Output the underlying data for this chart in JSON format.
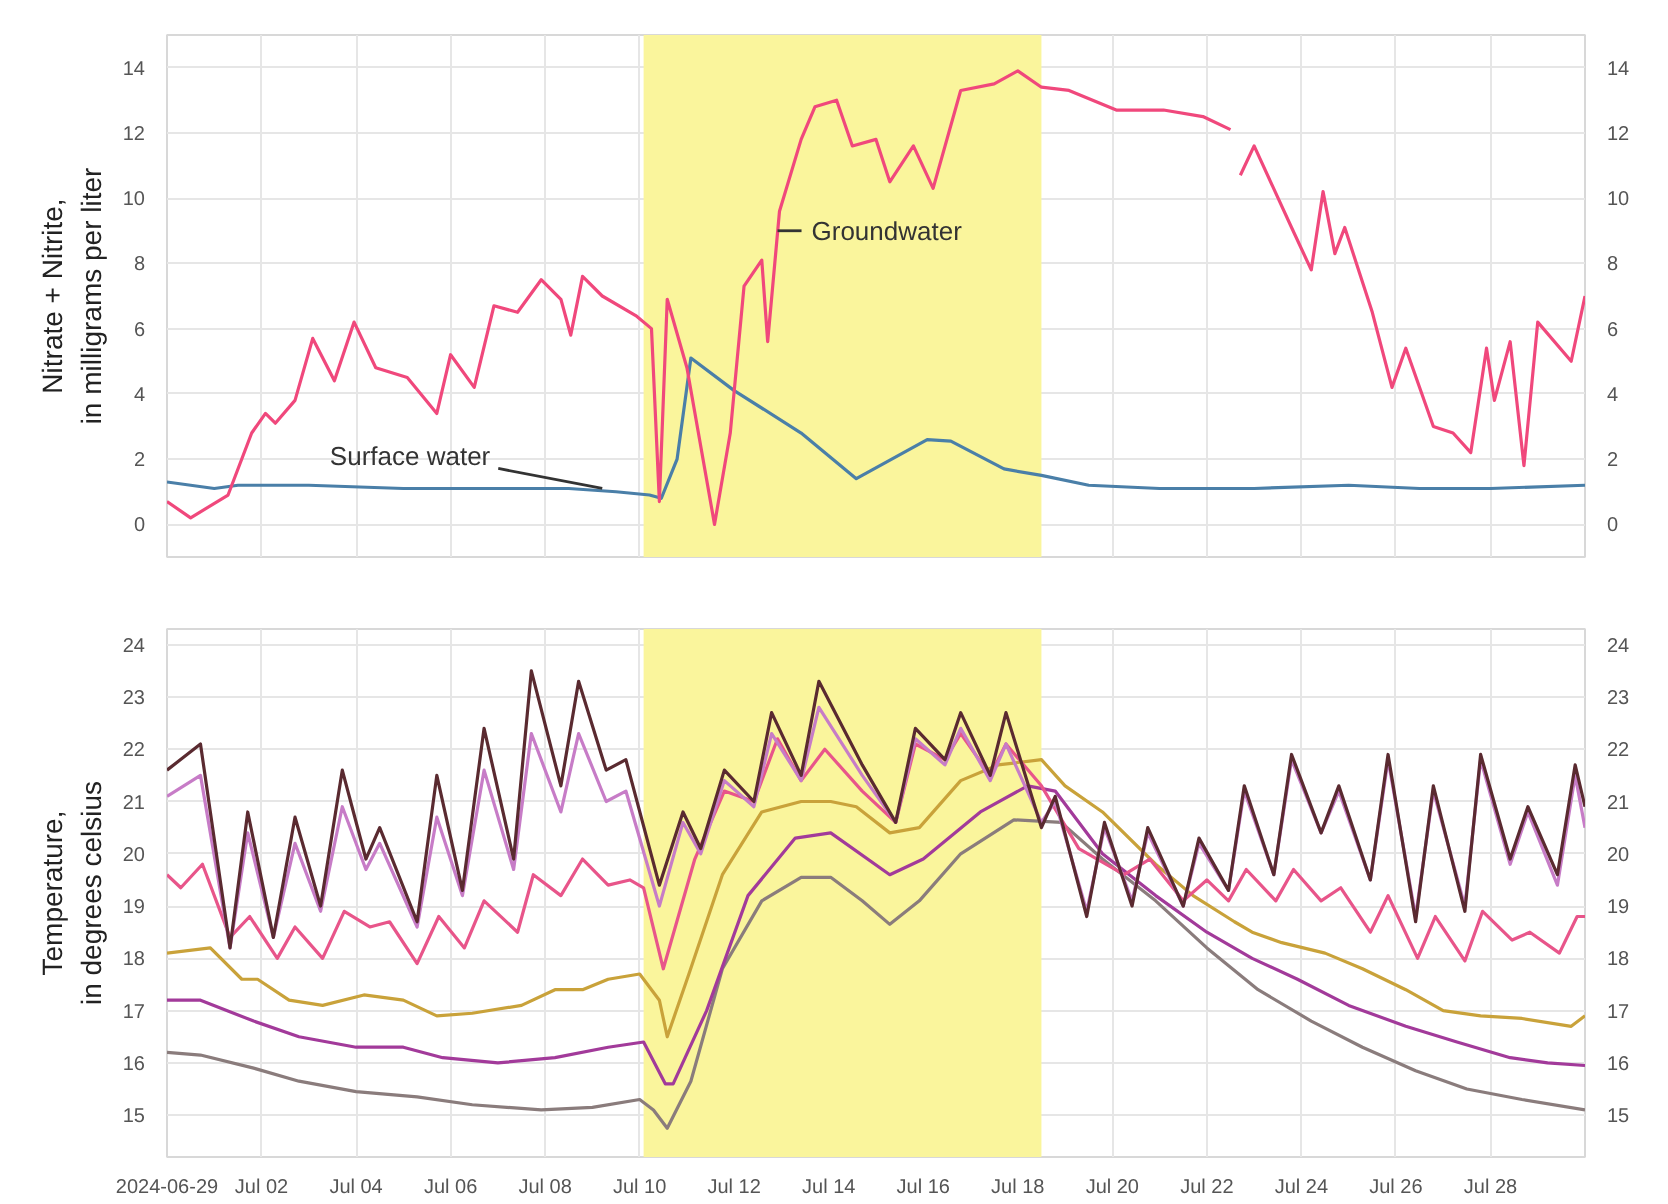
{
  "chart_data": [
    {
      "type": "line",
      "ylabel": "Nitrate + Nitrite,\nin milligrams per liter",
      "xlim": [
        "2024-06-30",
        "2024-07-30"
      ],
      "ylim": [
        -1,
        15
      ],
      "yticks": [
        0,
        2,
        4,
        6,
        8,
        10,
        12,
        14
      ],
      "y2lim": [
        -1,
        15
      ],
      "y2ticks": [
        0,
        2,
        4,
        6,
        8,
        10,
        12,
        14
      ],
      "xticks": [
        {
          "value": "2024-06-30",
          "label": null
        },
        {
          "value": "2024-07-02",
          "label": null
        },
        {
          "value": "2024-07-04",
          "label": null
        },
        {
          "value": "2024-07-06",
          "label": null
        },
        {
          "value": "2024-07-08",
          "label": null
        },
        {
          "value": "2024-07-10",
          "label": null
        },
        {
          "value": "2024-07-12",
          "label": null
        },
        {
          "value": "2024-07-14",
          "label": null
        },
        {
          "value": "2024-07-16",
          "label": null
        },
        {
          "value": "2024-07-18",
          "label": null
        },
        {
          "value": "2024-07-20",
          "label": null
        },
        {
          "value": "2024-07-22",
          "label": null
        },
        {
          "value": "2024-07-24",
          "label": null
        },
        {
          "value": "2024-07-26",
          "label": null
        },
        {
          "value": "2024-07-28",
          "label": null
        }
      ],
      "tick_labels": "y",
      "grid": true,
      "bands": [
        {
          "axis": "x",
          "from": "2024-07-10T02:00",
          "to": "2024-07-18T12:00",
          "color": "#faf59c"
        }
      ],
      "annotations": [
        {
          "text": "Surface water",
          "x": "2024-07-09T05:00",
          "y": 1.1
        },
        {
          "text": "Groundwater",
          "x": "2024-07-12T22:00",
          "y": 9.0
        }
      ],
      "series": [
        {
          "color": "#4a7fa8",
          "x": [
            "2024-06-30T00:00",
            "2024-07-01T00:00",
            "2024-07-01T12:00",
            "2024-07-03T00:00",
            "2024-07-05T00:00",
            "2024-07-07T00:00",
            "2024-07-08T12:00",
            "2024-07-09T12:00",
            "2024-07-10T05:00",
            "2024-07-10T11:00",
            "2024-07-10T19:00",
            "2024-07-11T02:00",
            "2024-07-12T00:00",
            "2024-07-13T10:00",
            "2024-07-14T14:00",
            "2024-07-16T02:00",
            "2024-07-16T14:00",
            "2024-07-17T17:00",
            "2024-07-18T12:00",
            "2024-07-19T12:00",
            "2024-07-21T00:00",
            "2024-07-23T00:00",
            "2024-07-25T00:00",
            "2024-07-26T12:00",
            "2024-07-28T00:00",
            "2024-07-30T00:00"
          ],
          "values": [
            1.3,
            1.1,
            1.2,
            1.2,
            1.1,
            1.1,
            1.1,
            1.0,
            0.9,
            0.8,
            2.0,
            5.1,
            4.1,
            2.8,
            1.4,
            2.6,
            2.55,
            1.7,
            1.5,
            1.2,
            1.1,
            1.1,
            1.2,
            1.1,
            1.1,
            1.2
          ]
        },
        {
          "color": "#f0487c",
          "x": [
            "2024-06-30T00:00",
            "2024-06-30T12:00",
            "2024-07-01T07:00",
            "2024-07-01T19:00",
            "2024-07-02T02:00",
            "2024-07-02T07:00",
            "2024-07-02T17:00",
            "2024-07-03T02:00",
            "2024-07-03T13:00",
            "2024-07-03T23:00",
            "2024-07-04T10:00",
            "2024-07-05T02:00",
            "2024-07-05T17:00",
            "2024-07-06T00:00",
            "2024-07-06T12:00",
            "2024-07-06T22:00",
            "2024-07-07T10:00",
            "2024-07-07T22:00",
            "2024-07-08T08:00",
            "2024-07-08T13:00",
            "2024-07-08T19:00",
            "2024-07-09T05:00",
            "2024-07-09T22:00",
            "2024-07-10T06:00",
            "2024-07-10T10:00",
            "2024-07-10T14:00",
            "2024-07-11T00:00",
            "2024-07-11T14:00",
            "2024-07-11T22:00",
            "2024-07-12T05:00",
            "2024-07-12T14:00",
            "2024-07-12T17:00",
            "2024-07-12T23:00",
            "2024-07-13T10:00",
            "2024-07-13T17:00",
            "2024-07-14T04:00",
            "2024-07-14T12:00",
            "2024-07-15T00:00",
            "2024-07-15T07:00",
            "2024-07-15T19:00",
            "2024-07-16T05:00",
            "2024-07-16T19:00",
            "2024-07-17T12:00",
            "2024-07-18T00:00",
            "2024-07-18T12:00",
            "2024-07-19T02:00",
            "2024-07-20T02:00",
            "2024-07-21T02:00",
            "2024-07-21T22:00",
            "2024-07-22T12:00",
            "2024-07-22T14:00",
            "2024-07-22T17:00",
            "2024-07-23T00:00",
            "2024-07-23T19:00",
            "2024-07-24T05:00",
            "2024-07-24T11:00",
            "2024-07-24T17:00",
            "2024-07-24T22:00",
            "2024-07-25T12:00",
            "2024-07-25T22:00",
            "2024-07-26T05:00",
            "2024-07-26T19:00",
            "2024-07-27T05:00",
            "2024-07-27T14:00",
            "2024-07-27T22:00",
            "2024-07-28T02:00",
            "2024-07-28T10:00",
            "2024-07-28T17:00",
            "2024-07-29T00:00",
            "2024-07-29T17:00",
            "2024-07-30T00:00"
          ],
          "values": [
            0.7,
            0.2,
            0.9,
            2.8,
            3.4,
            3.1,
            3.8,
            5.7,
            4.4,
            6.2,
            4.8,
            4.5,
            3.4,
            5.2,
            4.2,
            6.7,
            6.5,
            7.5,
            6.9,
            5.8,
            7.6,
            7.0,
            6.4,
            6.0,
            0.7,
            6.9,
            4.8,
            0.0,
            2.8,
            7.3,
            8.1,
            5.6,
            9.6,
            11.8,
            12.8,
            13.0,
            11.6,
            11.8,
            10.5,
            11.6,
            10.3,
            13.3,
            13.5,
            13.9,
            13.4,
            13.3,
            12.7,
            12.7,
            12.5,
            12.1,
            null,
            10.7,
            11.6,
            9.1,
            7.8,
            10.2,
            8.3,
            9.1,
            6.5,
            4.2,
            5.4,
            3.0,
            2.8,
            2.2,
            5.4,
            3.8,
            5.6,
            1.8,
            6.2,
            5.0,
            7.0
          ]
        }
      ]
    },
    {
      "type": "line",
      "ylabel": "Temperature,\nin degrees celsius",
      "xlim": [
        "2024-06-30",
        "2024-07-30"
      ],
      "ylim": [
        14.2,
        24.3
      ],
      "yticks": [
        15,
        16,
        17,
        18,
        19,
        20,
        21,
        22,
        23,
        24
      ],
      "y2lim": [
        14.2,
        24.3
      ],
      "y2ticks": [
        15,
        16,
        17,
        18,
        19,
        20,
        21,
        22,
        23,
        24
      ],
      "xticks": [
        {
          "value": "2024-06-30",
          "label": "2024-06-29"
        },
        {
          "value": "2024-07-02",
          "label": "Jul 02"
        },
        {
          "value": "2024-07-04",
          "label": "Jul 04"
        },
        {
          "value": "2024-07-06",
          "label": "Jul 06"
        },
        {
          "value": "2024-07-08",
          "label": "Jul 08"
        },
        {
          "value": "2024-07-10",
          "label": "Jul 10"
        },
        {
          "value": "2024-07-12",
          "label": "Jul 12"
        },
        {
          "value": "2024-07-14",
          "label": "Jul 14"
        },
        {
          "value": "2024-07-16",
          "label": "Jul 16"
        },
        {
          "value": "2024-07-18",
          "label": "Jul 18"
        },
        {
          "value": "2024-07-20",
          "label": "Jul 20"
        },
        {
          "value": "2024-07-22",
          "label": "Jul 22"
        },
        {
          "value": "2024-07-24",
          "label": "Jul 24"
        },
        {
          "value": "2024-07-26",
          "label": "Jul 26"
        },
        {
          "value": "2024-07-28",
          "label": "Jul 28"
        }
      ],
      "grid": true,
      "bands": [
        {
          "axis": "x",
          "from": "2024-07-10T02:00",
          "to": "2024-07-18T12:00",
          "color": "#faf59c"
        }
      ],
      "x": [
        "2024-06-30T00:00",
        "2024-06-30T17:00",
        "2024-07-01T08:00",
        "2024-07-01T17:00",
        "2024-07-02T06:00",
        "2024-07-02T17:00",
        "2024-07-03T06:00",
        "2024-07-03T17:00",
        "2024-07-04T05:00",
        "2024-07-04T12:00",
        "2024-07-05T07:00",
        "2024-07-05T17:00",
        "2024-07-06T06:00",
        "2024-07-06T17:00",
        "2024-07-07T08:00",
        "2024-07-07T17:00",
        "2024-07-08T08:00",
        "2024-07-08T17:00",
        "2024-07-09T07:00",
        "2024-07-09T17:00",
        "2024-07-10T10:00",
        "2024-07-10T22:00",
        "2024-07-11T07:00",
        "2024-07-11T19:00",
        "2024-07-12T10:00",
        "2024-07-12T19:00",
        "2024-07-13T10:00",
        "2024-07-13T19:00",
        "2024-07-14T17:00",
        "2024-07-15T10:00",
        "2024-07-15T20:00",
        "2024-07-16T11:00",
        "2024-07-16T19:00",
        "2024-07-17T10:00",
        "2024-07-17T18:00",
        "2024-07-18T12:00",
        "2024-07-18T19:00",
        "2024-07-19T11:00",
        "2024-07-19T20:00",
        "2024-07-20T10:00",
        "2024-07-20T18:00",
        "2024-07-21T12:00",
        "2024-07-21T20:00",
        "2024-07-22T11:00",
        "2024-07-22T19:00",
        "2024-07-23T10:00",
        "2024-07-23T19:00",
        "2024-07-24T10:00",
        "2024-07-24T19:00",
        "2024-07-25T11:00",
        "2024-07-25T20:00",
        "2024-07-26T10:00",
        "2024-07-26T19:00",
        "2024-07-27T11:00",
        "2024-07-27T19:00",
        "2024-07-28T10:00",
        "2024-07-28T19:00",
        "2024-07-29T10:00",
        "2024-07-29T19:00",
        "2024-07-30T00:00"
      ],
      "series": [
        {
          "color": "#8a7c7c",
          "x": [
            "2024-06-30T00:00",
            "2024-06-30T17:00",
            "2024-07-01T20:00",
            "2024-07-02T19:00",
            "2024-07-04T00:00",
            "2024-07-05T07:00",
            "2024-07-06T11:00",
            "2024-07-07T22:00",
            "2024-07-09T00:00",
            "2024-07-10T00:00",
            "2024-07-10T07:00",
            "2024-07-10T14:00",
            "2024-07-11T02:00",
            "2024-07-11T18:00",
            "2024-07-12T14:00",
            "2024-07-13T10:00",
            "2024-07-14T01:00",
            "2024-07-14T17:00",
            "2024-07-15T07:00",
            "2024-07-15T22:00",
            "2024-07-16T19:00",
            "2024-07-17T22:00",
            "2024-07-18T22:00",
            "2024-07-19T19:00",
            "2024-07-20T22:00",
            "2024-07-22T00:00",
            "2024-07-23T02:00",
            "2024-07-24T05:00",
            "2024-07-25T07:00",
            "2024-07-26T10:00",
            "2024-07-27T12:00",
            "2024-07-28T16:00",
            "2024-07-30T00:00"
          ],
          "values": [
            16.2,
            16.15,
            15.9,
            15.65,
            15.45,
            15.35,
            15.2,
            15.1,
            15.15,
            15.3,
            15.1,
            14.75,
            15.65,
            17.8,
            19.1,
            19.55,
            19.55,
            19.1,
            18.65,
            19.1,
            20.0,
            20.65,
            20.6,
            19.9,
            19.1,
            18.2,
            17.4,
            16.8,
            16.3,
            15.85,
            15.5,
            15.3,
            15.1
          ]
        },
        {
          "color": "#a23a9a",
          "x": [
            "2024-06-30T00:00",
            "2024-06-30T17:00",
            "2024-07-01T20:00",
            "2024-07-02T19:00",
            "2024-07-04T00:00",
            "2024-07-05T00:00",
            "2024-07-05T20:00",
            "2024-07-07T00:00",
            "2024-07-08T05:00",
            "2024-07-09T08:00",
            "2024-07-10T02:00",
            "2024-07-10T13:00",
            "2024-07-10T17:00",
            "2024-07-11T10:00",
            "2024-07-12T07:00",
            "2024-07-13T07:00",
            "2024-07-14T01:00",
            "2024-07-15T07:00",
            "2024-07-16T00:00",
            "2024-07-17T05:00",
            "2024-07-18T05:00",
            "2024-07-18T19:00",
            "2024-07-19T19:00",
            "2024-07-20T22:00",
            "2024-07-22T00:00",
            "2024-07-22T23:00",
            "2024-07-23T22:00",
            "2024-07-25T00:00",
            "2024-07-26T05:00",
            "2024-07-27T07:00",
            "2024-07-28T10:00",
            "2024-07-29T05:00",
            "2024-07-30T00:00"
          ],
          "values": [
            17.2,
            17.2,
            16.8,
            16.5,
            16.3,
            16.3,
            16.1,
            16.0,
            16.1,
            16.3,
            16.4,
            15.6,
            15.6,
            17.0,
            19.2,
            20.3,
            20.4,
            19.6,
            19.9,
            20.8,
            21.3,
            21.2,
            20.0,
            19.2,
            18.5,
            18.0,
            17.6,
            17.1,
            16.7,
            16.4,
            16.1,
            16.0,
            15.95
          ]
        },
        {
          "color": "#c9a23a",
          "x": [
            "2024-06-30T00:00",
            "2024-06-30T22:00",
            "2024-07-01T14:00",
            "2024-07-01T22:00",
            "2024-07-02T14:00",
            "2024-07-03T07:00",
            "2024-07-04T04:00",
            "2024-07-05T00:00",
            "2024-07-05T17:00",
            "2024-07-06T11:00",
            "2024-07-07T12:00",
            "2024-07-08T05:00",
            "2024-07-08T19:00",
            "2024-07-09T08:00",
            "2024-07-10T00:00",
            "2024-07-10T10:00",
            "2024-07-10T14:00",
            "2024-07-11T01:00",
            "2024-07-11T18:00",
            "2024-07-12T14:00",
            "2024-07-13T10:00",
            "2024-07-14T01:00",
            "2024-07-14T14:00",
            "2024-07-15T07:00",
            "2024-07-15T22:00",
            "2024-07-16T19:00",
            "2024-07-17T14:00",
            "2024-07-18T12:00",
            "2024-07-19T00:00",
            "2024-07-19T19:00",
            "2024-07-20T22:00",
            "2024-07-21T17:00",
            "2024-07-22T14:00",
            "2024-07-22T23:00",
            "2024-07-23T14:00",
            "2024-07-24T12:00",
            "2024-07-25T07:00",
            "2024-07-26T05:00",
            "2024-07-27T00:00",
            "2024-07-27T19:00",
            "2024-07-28T16:00",
            "2024-07-29T17:00",
            "2024-07-30T00:00"
          ],
          "values": [
            18.1,
            18.2,
            17.6,
            17.6,
            17.2,
            17.1,
            17.3,
            17.2,
            16.9,
            16.95,
            17.1,
            17.4,
            17.4,
            17.6,
            17.7,
            17.2,
            16.5,
            17.7,
            19.6,
            20.8,
            21.0,
            21.0,
            20.9,
            20.4,
            20.5,
            21.4,
            21.7,
            21.8,
            21.3,
            20.8,
            19.8,
            19.2,
            18.7,
            18.5,
            18.3,
            18.1,
            17.8,
            17.4,
            17.0,
            16.9,
            16.85,
            16.7,
            16.9
          ]
        },
        {
          "color": "#e8558a",
          "x": [
            "2024-06-30T00:00",
            "2024-06-30T07:00",
            "2024-06-30T18:00",
            "2024-07-01T08:00",
            "2024-07-01T18:00",
            "2024-07-02T08:00",
            "2024-07-02T17:00",
            "2024-07-03T07:00",
            "2024-07-03T18:00",
            "2024-07-04T07:00",
            "2024-07-04T17:00",
            "2024-07-05T07:00",
            "2024-07-05T18:00",
            "2024-07-06T07:00",
            "2024-07-06T17:00",
            "2024-07-07T10:00",
            "2024-07-07T18:00",
            "2024-07-08T08:00",
            "2024-07-08T19:00",
            "2024-07-09T08:00",
            "2024-07-09T19:00",
            "2024-07-10T02:00",
            "2024-07-10T12:00",
            "2024-07-11T04:00",
            "2024-07-11T19:00",
            "2024-07-12T10:00",
            "2024-07-12T22:00",
            "2024-07-13T10:00",
            "2024-07-13T22:00",
            "2024-07-14T17:00",
            "2024-07-15T10:00",
            "2024-07-15T20:00",
            "2024-07-16T11:00",
            "2024-07-16T19:00",
            "2024-07-17T10:00",
            "2024-07-17T18:00",
            "2024-07-18T12:00",
            "2024-07-19T07:00",
            "2024-07-20T06:00",
            "2024-07-20T19:00",
            "2024-07-21T12:00",
            "2024-07-22T00:00",
            "2024-07-22T11:00",
            "2024-07-22T20:00",
            "2024-07-23T11:00",
            "2024-07-23T20:00",
            "2024-07-24T10:00",
            "2024-07-24T20:00",
            "2024-07-25T11:00",
            "2024-07-25T20:00",
            "2024-07-26T11:00",
            "2024-07-26T20:00",
            "2024-07-27T11:00",
            "2024-07-27T20:00",
            "2024-07-28T11:00",
            "2024-07-28T20:00",
            "2024-07-29T11:00",
            "2024-07-29T20:00",
            "2024-07-30T00:00"
          ],
          "values": [
            19.6,
            19.35,
            19.8,
            18.4,
            18.8,
            18.0,
            18.6,
            18.0,
            18.9,
            18.6,
            18.7,
            17.9,
            18.8,
            18.2,
            19.1,
            18.5,
            19.6,
            19.2,
            19.9,
            19.4,
            19.5,
            19.35,
            17.8,
            19.9,
            21.2,
            21.0,
            22.2,
            21.4,
            22.0,
            21.2,
            20.6,
            22.1,
            21.8,
            22.3,
            21.5,
            22.1,
            21.3,
            20.1,
            19.6,
            19.9,
            19.1,
            19.5,
            19.1,
            19.7,
            19.1,
            19.7,
            19.1,
            19.35,
            18.5,
            19.2,
            18.0,
            18.8,
            17.95,
            18.9,
            18.35,
            18.5,
            18.1,
            18.8,
            18.8
          ]
        },
        {
          "color": "#c77cc7",
          "values": [
            21.1,
            21.5,
            18.2,
            20.4,
            18.4,
            20.2,
            18.9,
            20.9,
            19.7,
            20.2,
            18.6,
            20.7,
            19.2,
            21.6,
            19.7,
            22.3,
            20.8,
            22.3,
            21.0,
            21.2,
            19.0,
            20.6,
            20.0,
            21.4,
            20.9,
            22.3,
            21.4,
            22.8,
            21.5,
            20.6,
            22.2,
            21.7,
            22.4,
            21.4,
            22.1,
            20.6,
            21.0,
            18.9,
            20.5,
            19.1,
            20.4,
            19.0,
            20.2,
            19.3,
            21.2,
            19.6,
            21.8,
            20.4,
            21.2,
            19.5,
            21.8,
            18.8,
            21.2,
            19.0,
            21.8,
            19.8,
            20.8,
            19.4,
            21.5,
            20.5
          ]
        },
        {
          "color": "#5a2a30",
          "values": [
            21.6,
            22.1,
            18.2,
            20.8,
            18.4,
            20.7,
            19.0,
            21.6,
            19.9,
            20.5,
            18.7,
            21.5,
            19.3,
            22.4,
            19.9,
            23.5,
            21.3,
            23.3,
            21.6,
            21.8,
            19.4,
            20.8,
            20.1,
            21.6,
            21.0,
            22.7,
            21.5,
            23.3,
            21.7,
            20.6,
            22.4,
            21.8,
            22.7,
            21.5,
            22.7,
            20.5,
            21.1,
            18.8,
            20.6,
            19.0,
            20.5,
            19.0,
            20.3,
            19.3,
            21.3,
            19.6,
            21.9,
            20.4,
            21.3,
            19.5,
            21.9,
            18.7,
            21.3,
            18.9,
            21.9,
            19.9,
            20.9,
            19.6,
            21.7,
            20.9
          ]
        }
      ]
    }
  ]
}
